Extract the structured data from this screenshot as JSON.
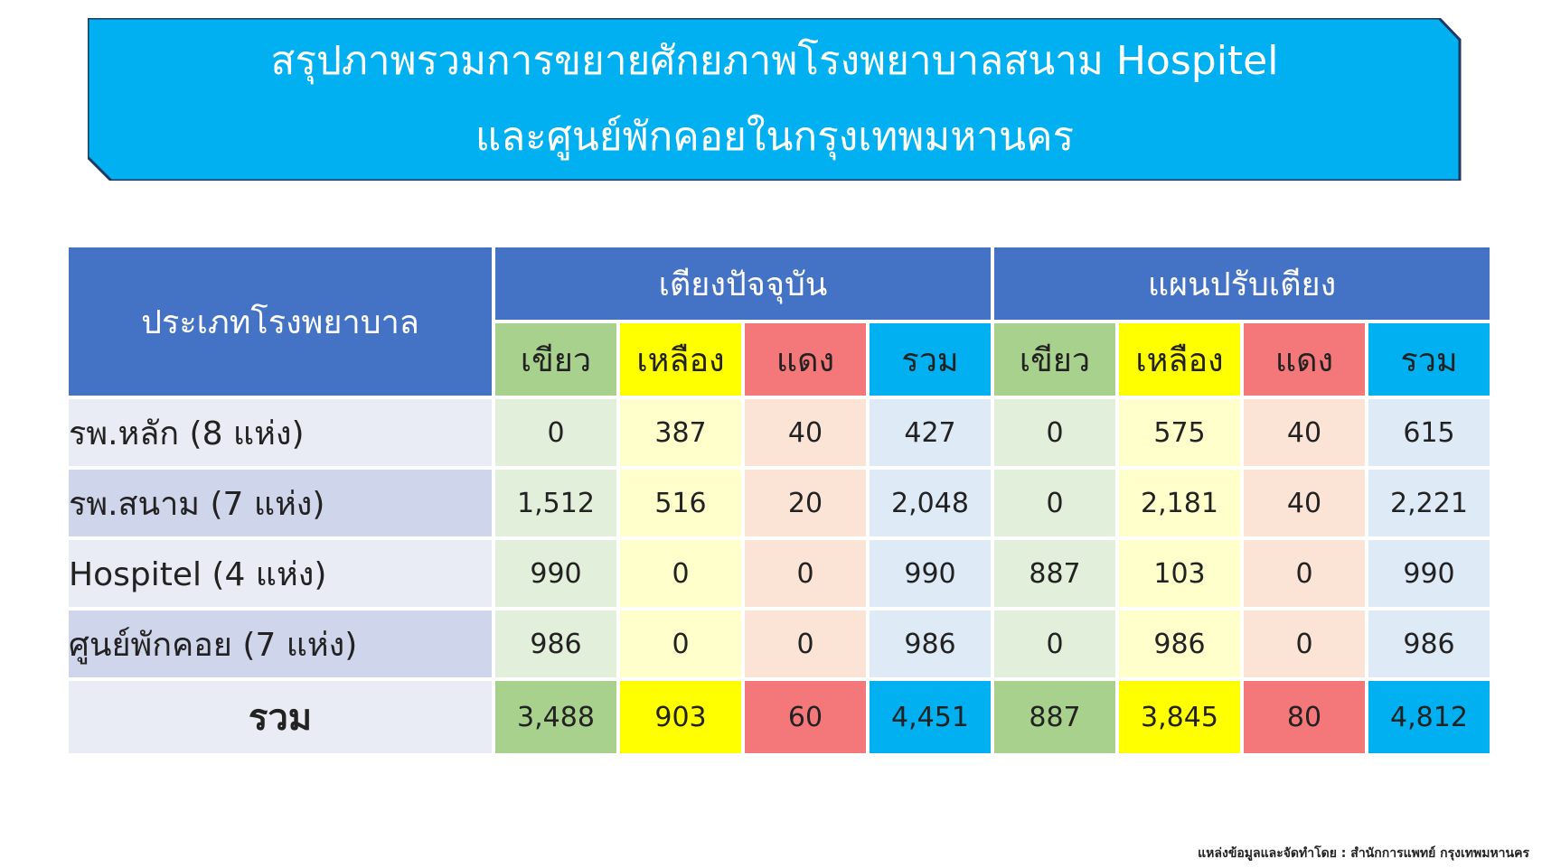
{
  "banner": {
    "title_line1": "สรุปภาพรวมการขยายศักยภาพโรงพยาบาลสนาม Hospitel",
    "title_line2": "และศูนย์พักคอยในกรุงเทพมหานคร",
    "fill_color": "#00b0f0",
    "border_color": "#1f3864"
  },
  "table": {
    "type_header": "ประเภทโรงพยาบาล",
    "groups": [
      {
        "label": "เตียงปัจจุบัน",
        "sub": [
          "เขียว",
          "เหลือง",
          "แดง",
          "รวม"
        ]
      },
      {
        "label": "แผนปรับเตียง",
        "sub": [
          "เขียว",
          "เหลือง",
          "แดง",
          "รวม"
        ]
      }
    ],
    "rows": [
      {
        "name": "รพ.หลัก (8 แห่ง)",
        "current": [
          "0",
          "387",
          "40",
          "427"
        ],
        "plan": [
          "0",
          "575",
          "40",
          "615"
        ]
      },
      {
        "name": "รพ.สนาม (7 แห่ง)",
        "current": [
          "1,512",
          "516",
          "20",
          "2,048"
        ],
        "plan": [
          "0",
          "2,181",
          "40",
          "2,221"
        ]
      },
      {
        "name": "Hospitel (4 แห่ง)",
        "current": [
          "990",
          "0",
          "0",
          "990"
        ],
        "plan": [
          "887",
          "103",
          "0",
          "990"
        ]
      },
      {
        "name": "ศูนย์พักคอย (7 แห่ง)",
        "current": [
          "986",
          "0",
          "0",
          "986"
        ],
        "plan": [
          "0",
          "986",
          "0",
          "986"
        ]
      }
    ],
    "total": {
      "name": "รวม",
      "current": [
        "3,488",
        "903",
        "60",
        "4,451"
      ],
      "plan": [
        "887",
        "3,845",
        "80",
        "4,812"
      ]
    }
  },
  "source": "แหล่งข้อมูลและจัดทำโดย : สำนักการแพทย์ กรุงเทพมหานคร"
}
